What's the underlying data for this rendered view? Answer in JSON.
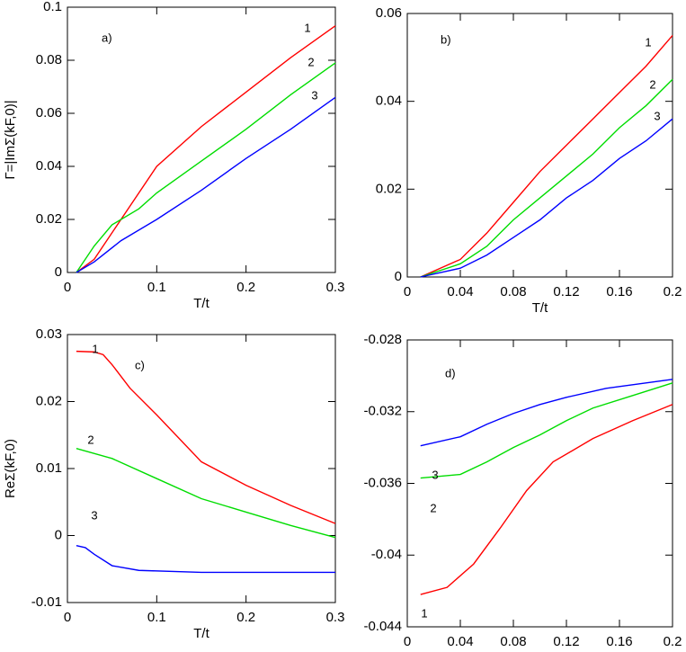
{
  "chart_data": [
    {
      "type": "line",
      "label": "a)",
      "xlabel": "T/t",
      "ylabel": "Γ=|ImΣ(kF,0)|",
      "xlim": [
        0,
        0.3
      ],
      "xticks": [
        0,
        0.1,
        0.2,
        0.3
      ],
      "ylim": [
        0,
        0.1
      ],
      "yticks": [
        0,
        0.02,
        0.04,
        0.06,
        0.08,
        0.1
      ],
      "series": [
        {
          "name": "1",
          "color": "#ff0000",
          "x": [
            0.01,
            0.03,
            0.06,
            0.1,
            0.15,
            0.2,
            0.25,
            0.3
          ],
          "values": [
            0,
            0.005,
            0.02,
            0.04,
            0.055,
            0.068,
            0.081,
            0.093
          ]
        },
        {
          "name": "2",
          "color": "#00dd00",
          "x": [
            0.01,
            0.03,
            0.05,
            0.08,
            0.1,
            0.15,
            0.2,
            0.25,
            0.3
          ],
          "values": [
            0,
            0.01,
            0.018,
            0.024,
            0.03,
            0.042,
            0.054,
            0.067,
            0.079
          ]
        },
        {
          "name": "3",
          "color": "#0000ff",
          "x": [
            0.01,
            0.03,
            0.06,
            0.1,
            0.15,
            0.2,
            0.25,
            0.3
          ],
          "values": [
            0,
            0.004,
            0.012,
            0.02,
            0.031,
            0.043,
            0.054,
            0.066
          ]
        }
      ]
    },
    {
      "type": "line",
      "label": "b)",
      "xlabel": "T/t",
      "xlim": [
        0,
        0.2
      ],
      "xticks": [
        0,
        0.04,
        0.08,
        0.12,
        0.16,
        0.2
      ],
      "ylim": [
        0,
        0.06
      ],
      "yticks": [
        0,
        0.02,
        0.04,
        0.06
      ],
      "series": [
        {
          "name": "1",
          "color": "#ff0000",
          "x": [
            0.01,
            0.04,
            0.06,
            0.08,
            0.1,
            0.12,
            0.14,
            0.16,
            0.18,
            0.2
          ],
          "values": [
            0,
            0.004,
            0.01,
            0.017,
            0.024,
            0.03,
            0.036,
            0.042,
            0.048,
            0.055
          ]
        },
        {
          "name": "2",
          "color": "#00dd00",
          "x": [
            0.01,
            0.04,
            0.06,
            0.08,
            0.1,
            0.12,
            0.14,
            0.16,
            0.18,
            0.2
          ],
          "values": [
            0,
            0.003,
            0.007,
            0.013,
            0.018,
            0.023,
            0.028,
            0.034,
            0.039,
            0.045
          ]
        },
        {
          "name": "3",
          "color": "#0000ff",
          "x": [
            0.01,
            0.04,
            0.06,
            0.08,
            0.1,
            0.12,
            0.14,
            0.16,
            0.18,
            0.2
          ],
          "values": [
            0,
            0.002,
            0.005,
            0.009,
            0.013,
            0.018,
            0.022,
            0.027,
            0.031,
            0.036
          ]
        }
      ]
    },
    {
      "type": "line",
      "label": "c)",
      "xlabel": "T/t",
      "ylabel": "ReΣ(kF,0)",
      "xlim": [
        0,
        0.3
      ],
      "xticks": [
        0,
        0.1,
        0.2,
        0.3
      ],
      "ylim": [
        -0.01,
        0.03
      ],
      "yticks": [
        -0.01,
        0,
        0.01,
        0.02,
        0.03
      ],
      "series": [
        {
          "name": "1",
          "color": "#ff0000",
          "x": [
            0.01,
            0.03,
            0.04,
            0.05,
            0.07,
            0.1,
            0.15,
            0.2,
            0.25,
            0.3
          ],
          "values": [
            0.0275,
            0.0274,
            0.027,
            0.0255,
            0.022,
            0.018,
            0.011,
            0.0075,
            0.0045,
            0.0018
          ]
        },
        {
          "name": "2",
          "color": "#00dd00",
          "x": [
            0.01,
            0.05,
            0.1,
            0.15,
            0.2,
            0.25,
            0.3
          ],
          "values": [
            0.013,
            0.0115,
            0.0085,
            0.0055,
            0.0035,
            0.0015,
            -0.0003
          ]
        },
        {
          "name": "3",
          "color": "#0000ff",
          "x": [
            0.01,
            0.02,
            0.03,
            0.05,
            0.08,
            0.15,
            0.2,
            0.3
          ],
          "values": [
            -0.0015,
            -0.0018,
            -0.0028,
            -0.0045,
            -0.0052,
            -0.0055,
            -0.0055,
            -0.0055
          ]
        }
      ]
    },
    {
      "type": "line",
      "label": "d)",
      "xlabel": "T/t",
      "xlim": [
        0,
        0.2
      ],
      "xticks": [
        0,
        0.04,
        0.08,
        0.12,
        0.16,
        0.2
      ],
      "ylim": [
        -0.044,
        -0.028
      ],
      "yticks": [
        -0.044,
        -0.04,
        -0.036,
        -0.032,
        -0.028
      ],
      "series": [
        {
          "name": "1",
          "color": "#ff0000",
          "x": [
            0.01,
            0.03,
            0.05,
            0.07,
            0.09,
            0.11,
            0.14,
            0.17,
            0.2
          ],
          "values": [
            -0.0422,
            -0.0418,
            -0.0405,
            -0.0385,
            -0.0364,
            -0.0348,
            -0.0335,
            -0.0325,
            -0.0316
          ]
        },
        {
          "name": "2",
          "color": "#00dd00",
          "x": [
            0.01,
            0.04,
            0.06,
            0.08,
            0.1,
            0.12,
            0.14,
            0.17,
            0.2
          ],
          "values": [
            -0.0357,
            -0.0355,
            -0.0348,
            -0.034,
            -0.0333,
            -0.0325,
            -0.0318,
            -0.0311,
            -0.0304
          ]
        },
        {
          "name": "3",
          "color": "#0000ff",
          "x": [
            0.01,
            0.04,
            0.06,
            0.08,
            0.1,
            0.12,
            0.15,
            0.2
          ],
          "values": [
            -0.0339,
            -0.0334,
            -0.0327,
            -0.0321,
            -0.0316,
            -0.0312,
            -0.0307,
            -0.0302
          ]
        }
      ]
    }
  ]
}
